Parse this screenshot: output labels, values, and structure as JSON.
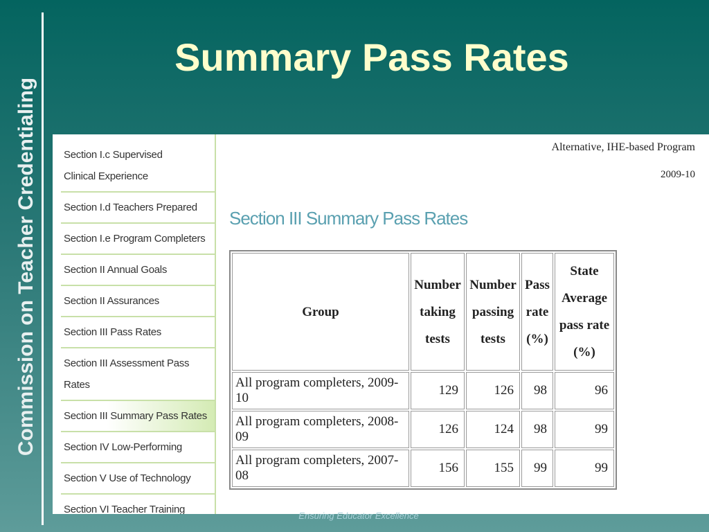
{
  "side_title": "Commission on Teacher Credentialing",
  "title": "Summary Pass Rates",
  "nav": [
    "Section I.c Supervised Clinical Experience",
    "Section I.d Teachers Prepared",
    "Section I.e Program Completers",
    "Section II Annual Goals",
    "Section II Assurances",
    "Section III Pass Rates",
    "Section III Assessment Pass Rates",
    "Section III Summary Pass Rates",
    "Section IV Low-Performing",
    "Section V Use of Technology",
    "Section VI Teacher Training"
  ],
  "program": "Alternative, IHE-based Program",
  "year": "2009-10",
  "section_heading": "Section III Summary Pass Rates",
  "table": {
    "header": [
      "Group",
      "Number taking tests",
      "Number passing tests",
      "Pass rate (%)",
      "State Average pass rate (%)"
    ],
    "rows": [
      [
        "All program completers, 2009-10",
        129,
        126,
        98,
        96
      ],
      [
        "All program completers, 2008-09",
        126,
        124,
        98,
        99
      ],
      [
        "All program completers, 2007-08",
        156,
        155,
        99,
        99
      ]
    ]
  },
  "footer": "Ensuring Educator Excellence"
}
